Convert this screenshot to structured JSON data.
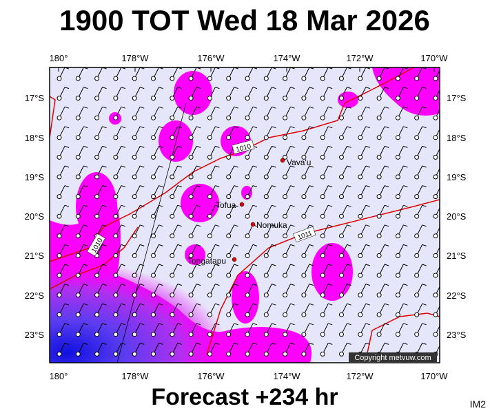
{
  "header": {
    "title": "1900 TOT Wed 18 Mar 2026"
  },
  "footer": {
    "forecast": "Forecast +234 hr",
    "image_id": "IM2"
  },
  "map": {
    "lon_labels": [
      "180°",
      "178°W",
      "176°W",
      "174°W",
      "172°W",
      "170°W"
    ],
    "lat_labels": [
      "17°S",
      "18°S",
      "19°S",
      "20°S",
      "21°S",
      "22°S",
      "23°S"
    ],
    "places": [
      "Vava'u",
      "Tofua",
      "Nomuka",
      "Tongatapu"
    ],
    "isobar_labels": [
      "1010",
      "1010",
      "1011"
    ],
    "copyright": "Copyright metvuw.com"
  }
}
